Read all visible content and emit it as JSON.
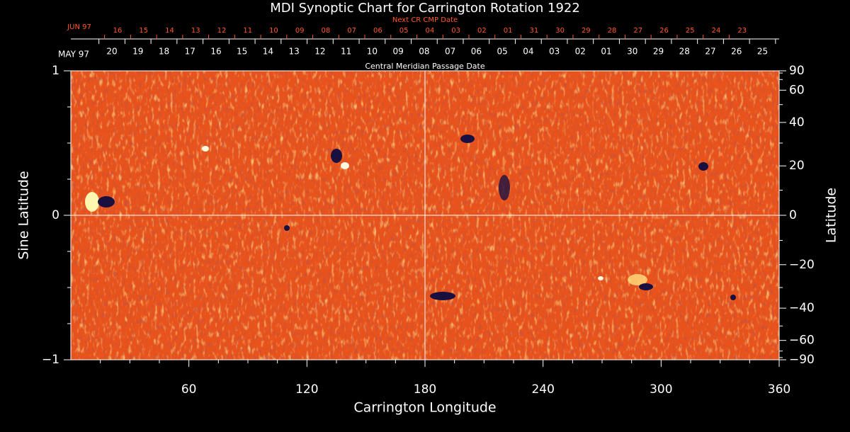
{
  "chart_data": {
    "type": "synoptic-map",
    "title": "MDI Synoptic Chart for Carrington Rotation 1922",
    "xlabel": "Carrington Longitude",
    "ylabel": "Sine Latitude",
    "y2label": "Latitude",
    "xlim": [
      0,
      360
    ],
    "xticks": [
      60,
      120,
      180,
      240,
      300,
      360
    ],
    "xminor": [
      15,
      30,
      45,
      75,
      90,
      105,
      135,
      150,
      165,
      195,
      210,
      225,
      255,
      270,
      285,
      315,
      330,
      345
    ],
    "ylim": [
      -1,
      1
    ],
    "yticks": [
      {
        "value": -1,
        "label": "−1"
      },
      0,
      1
    ],
    "yminor": [
      -0.75,
      -0.5,
      -0.25,
      0.25,
      0.5,
      0.75
    ],
    "y2lim": [
      -90,
      90
    ],
    "y2scale": "sine",
    "y2ticks": [
      {
        "value": -90,
        "label": "−90"
      },
      {
        "value": -60,
        "label": "−60"
      },
      {
        "value": -40,
        "label": "−40"
      },
      {
        "value": -20,
        "label": "−20"
      },
      0,
      20,
      40,
      60,
      90
    ],
    "y2minor": [
      -80,
      -70,
      -50,
      -30,
      -10,
      10,
      30,
      50,
      70,
      80
    ],
    "guides": {
      "x": 180,
      "y": 0
    },
    "cmp_axis": {
      "label": "Central Meridian Passage Date",
      "month": "MAY 97",
      "dates": [
        "20",
        "19",
        "18",
        "17",
        "16",
        "15",
        "14",
        "13",
        "12",
        "11",
        "10",
        "09",
        "08",
        "07",
        "06",
        "05",
        "04",
        "03",
        "02",
        "01",
        "30",
        "29",
        "28",
        "27",
        "26",
        "25"
      ]
    },
    "next_cmp_axis": {
      "label": "Next CR CMP Date",
      "month": "JUN 97",
      "dates": [
        "16",
        "15",
        "14",
        "13",
        "12",
        "11",
        "10",
        "09",
        "08",
        "07",
        "06",
        "05",
        "04",
        "03",
        "02",
        "01",
        "31",
        "30",
        "29",
        "28",
        "27",
        "26",
        "25",
        "24",
        "23"
      ]
    }
  }
}
